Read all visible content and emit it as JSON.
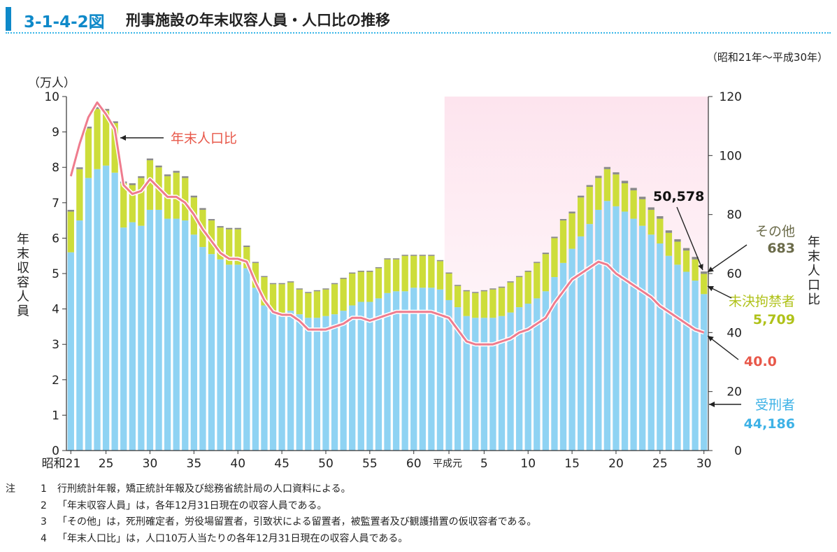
{
  "figure": {
    "number": "3-1-4-2図",
    "title": "刑事施設の年末収容人員・人口比の推移",
    "period": "（昭和21年～平成30年）"
  },
  "chart_data": {
    "type": "bar",
    "stacked": true,
    "years": [
      "昭和21",
      "22",
      "23",
      "24",
      "25",
      "26",
      "27",
      "28",
      "29",
      "30",
      "31",
      "32",
      "33",
      "34",
      "35",
      "36",
      "37",
      "38",
      "39",
      "40",
      "41",
      "42",
      "43",
      "44",
      "45",
      "46",
      "47",
      "48",
      "49",
      "50",
      "51",
      "52",
      "53",
      "54",
      "55",
      "56",
      "57",
      "58",
      "59",
      "60",
      "61",
      "62",
      "63",
      "平成元",
      "2",
      "3",
      "4",
      "5",
      "6",
      "7",
      "8",
      "9",
      "10",
      "11",
      "12",
      "13",
      "14",
      "15",
      "16",
      "17",
      "18",
      "19",
      "20",
      "21",
      "22",
      "23",
      "24",
      "25",
      "26",
      "27",
      "28",
      "29",
      "30"
    ],
    "x_tick_labels": [
      {
        "index": 0,
        "label": "昭和21"
      },
      {
        "index": 4,
        "label": "25"
      },
      {
        "index": 9,
        "label": "30"
      },
      {
        "index": 14,
        "label": "35"
      },
      {
        "index": 19,
        "label": "40"
      },
      {
        "index": 24,
        "label": "45"
      },
      {
        "index": 29,
        "label": "50"
      },
      {
        "index": 34,
        "label": "55"
      },
      {
        "index": 39,
        "label": "60"
      },
      {
        "index": 43,
        "label": "平成元"
      },
      {
        "index": 47,
        "label": "5"
      },
      {
        "index": 52,
        "label": "10"
      },
      {
        "index": 57,
        "label": "15"
      },
      {
        "index": 62,
        "label": "20"
      },
      {
        "index": 67,
        "label": "25"
      },
      {
        "index": 72,
        "label": "30"
      }
    ],
    "left_axis": {
      "label": "年末収容人員",
      "unit": "（万人）",
      "min": 0,
      "max": 10,
      "ticks": [
        "0",
        "1",
        "2",
        "3",
        "4",
        "5",
        "6",
        "7",
        "8",
        "9",
        "10"
      ]
    },
    "right_axis": {
      "label": "年末人口比",
      "min": 0,
      "max": 120,
      "ticks": [
        "0",
        "20",
        "40",
        "60",
        "80",
        "100",
        "120"
      ]
    },
    "series": [
      {
        "name": "受刑者",
        "color": "#8fd3f3",
        "values": [
          5.6,
          6.5,
          7.7,
          7.95,
          8.05,
          7.85,
          6.3,
          6.45,
          6.35,
          6.8,
          6.8,
          6.55,
          6.55,
          6.5,
          6.1,
          5.75,
          5.55,
          5.4,
          5.25,
          5.25,
          5.15,
          4.6,
          4.1,
          3.95,
          3.85,
          3.95,
          3.85,
          3.75,
          3.75,
          3.8,
          3.85,
          3.95,
          4.1,
          4.2,
          4.2,
          4.3,
          4.45,
          4.5,
          4.5,
          4.6,
          4.6,
          4.6,
          4.55,
          4.25,
          4.05,
          3.8,
          3.75,
          3.75,
          3.75,
          3.8,
          3.9,
          4.05,
          4.15,
          4.3,
          4.5,
          4.9,
          5.3,
          5.7,
          6.05,
          6.4,
          6.8,
          7.05,
          6.9,
          6.75,
          6.55,
          6.35,
          6.1,
          5.85,
          5.5,
          5.25,
          5.05,
          4.8,
          4.42
        ]
      },
      {
        "name": "未決拘禁者",
        "color": "#cddd3a",
        "values": [
          1.15,
          1.45,
          1.4,
          1.7,
          1.55,
          1.4,
          1.25,
          1.05,
          1.35,
          1.4,
          1.2,
          1.2,
          1.3,
          1.2,
          1.05,
          1.05,
          0.95,
          0.9,
          1.0,
          1.0,
          0.6,
          0.7,
          0.8,
          0.75,
          0.85,
          0.8,
          0.7,
          0.7,
          0.75,
          0.75,
          0.85,
          0.9,
          0.9,
          0.85,
          0.85,
          0.85,
          0.95,
          0.9,
          1.0,
          0.9,
          0.9,
          0.9,
          0.8,
          0.75,
          0.6,
          0.7,
          0.7,
          0.75,
          0.8,
          0.8,
          0.85,
          0.85,
          0.9,
          1.0,
          1.05,
          1.1,
          1.2,
          1.0,
          1.1,
          1.05,
          0.9,
          0.9,
          0.9,
          0.8,
          0.8,
          0.75,
          0.7,
          0.7,
          0.65,
          0.65,
          0.6,
          0.6,
          0.571
        ]
      },
      {
        "name": "その他",
        "color": "#8a8a8a",
        "values": [
          0.05,
          0.05,
          0.05,
          0.05,
          0.05,
          0.05,
          0.05,
          0.05,
          0.05,
          0.05,
          0.05,
          0.05,
          0.05,
          0.05,
          0.05,
          0.05,
          0.04,
          0.04,
          0.04,
          0.04,
          0.04,
          0.03,
          0.03,
          0.03,
          0.03,
          0.03,
          0.03,
          0.03,
          0.03,
          0.03,
          0.03,
          0.03,
          0.03,
          0.03,
          0.03,
          0.03,
          0.03,
          0.03,
          0.03,
          0.03,
          0.03,
          0.03,
          0.03,
          0.03,
          0.03,
          0.03,
          0.03,
          0.03,
          0.03,
          0.03,
          0.03,
          0.03,
          0.03,
          0.03,
          0.04,
          0.04,
          0.04,
          0.05,
          0.05,
          0.05,
          0.06,
          0.06,
          0.06,
          0.07,
          0.07,
          0.07,
          0.07,
          0.07,
          0.07,
          0.07,
          0.07,
          0.07,
          0.068
        ]
      }
    ],
    "line": {
      "name": "年末人口比",
      "color": "#ef7c8e",
      "values": [
        93,
        104,
        113,
        118,
        114,
        109,
        90,
        87,
        88,
        92,
        89,
        86,
        86,
        84,
        80,
        75,
        71,
        67,
        65,
        65,
        64,
        57,
        51,
        47,
        46,
        46,
        44,
        41,
        41,
        41,
        42,
        43,
        45,
        45,
        44,
        45,
        46,
        47,
        47,
        47,
        47,
        47,
        46,
        45,
        41,
        37,
        36,
        36,
        36,
        37,
        38,
        40,
        41,
        43,
        45,
        50,
        54,
        58,
        60,
        62,
        64,
        63,
        60,
        58,
        56,
        54,
        52,
        49,
        47,
        45,
        43,
        41,
        40.0
      ]
    },
    "shaded_region": {
      "from_index": 43,
      "to_index": 72,
      "color": "#fde4ee"
    },
    "annotations": {
      "line_label": "年末人口比",
      "total_value": "50,578",
      "other_label": "その他",
      "other_value": "683",
      "pretrial_label": "未決拘禁者",
      "pretrial_value": "5,709",
      "ratio_value": "40.0",
      "convict_label": "受刑者",
      "convict_value": "44,186"
    },
    "colors": {
      "axis": "#333333",
      "label_gray": "#6b6b4a",
      "label_green": "#b0c21a",
      "label_red": "#e8584a",
      "label_blue": "#3eb2e6",
      "line_halo": "#ffffff"
    }
  },
  "notes": {
    "head": "注",
    "items": [
      {
        "num": "1",
        "text": "行刑統計年報，矯正統計年報及び総務省統計局の人口資料による。"
      },
      {
        "num": "2",
        "text": "「年末収容人員」は，各年12月31日現在の収容人員である。"
      },
      {
        "num": "3",
        "text": "「その他」は，死刑確定者，労役場留置者，引致状による留置者，被監置者及び観護措置の仮収容者である。"
      },
      {
        "num": "4",
        "text": "「年末人口比」は，人口10万人当たりの各年12月31日現在の収容人員である。"
      }
    ]
  }
}
